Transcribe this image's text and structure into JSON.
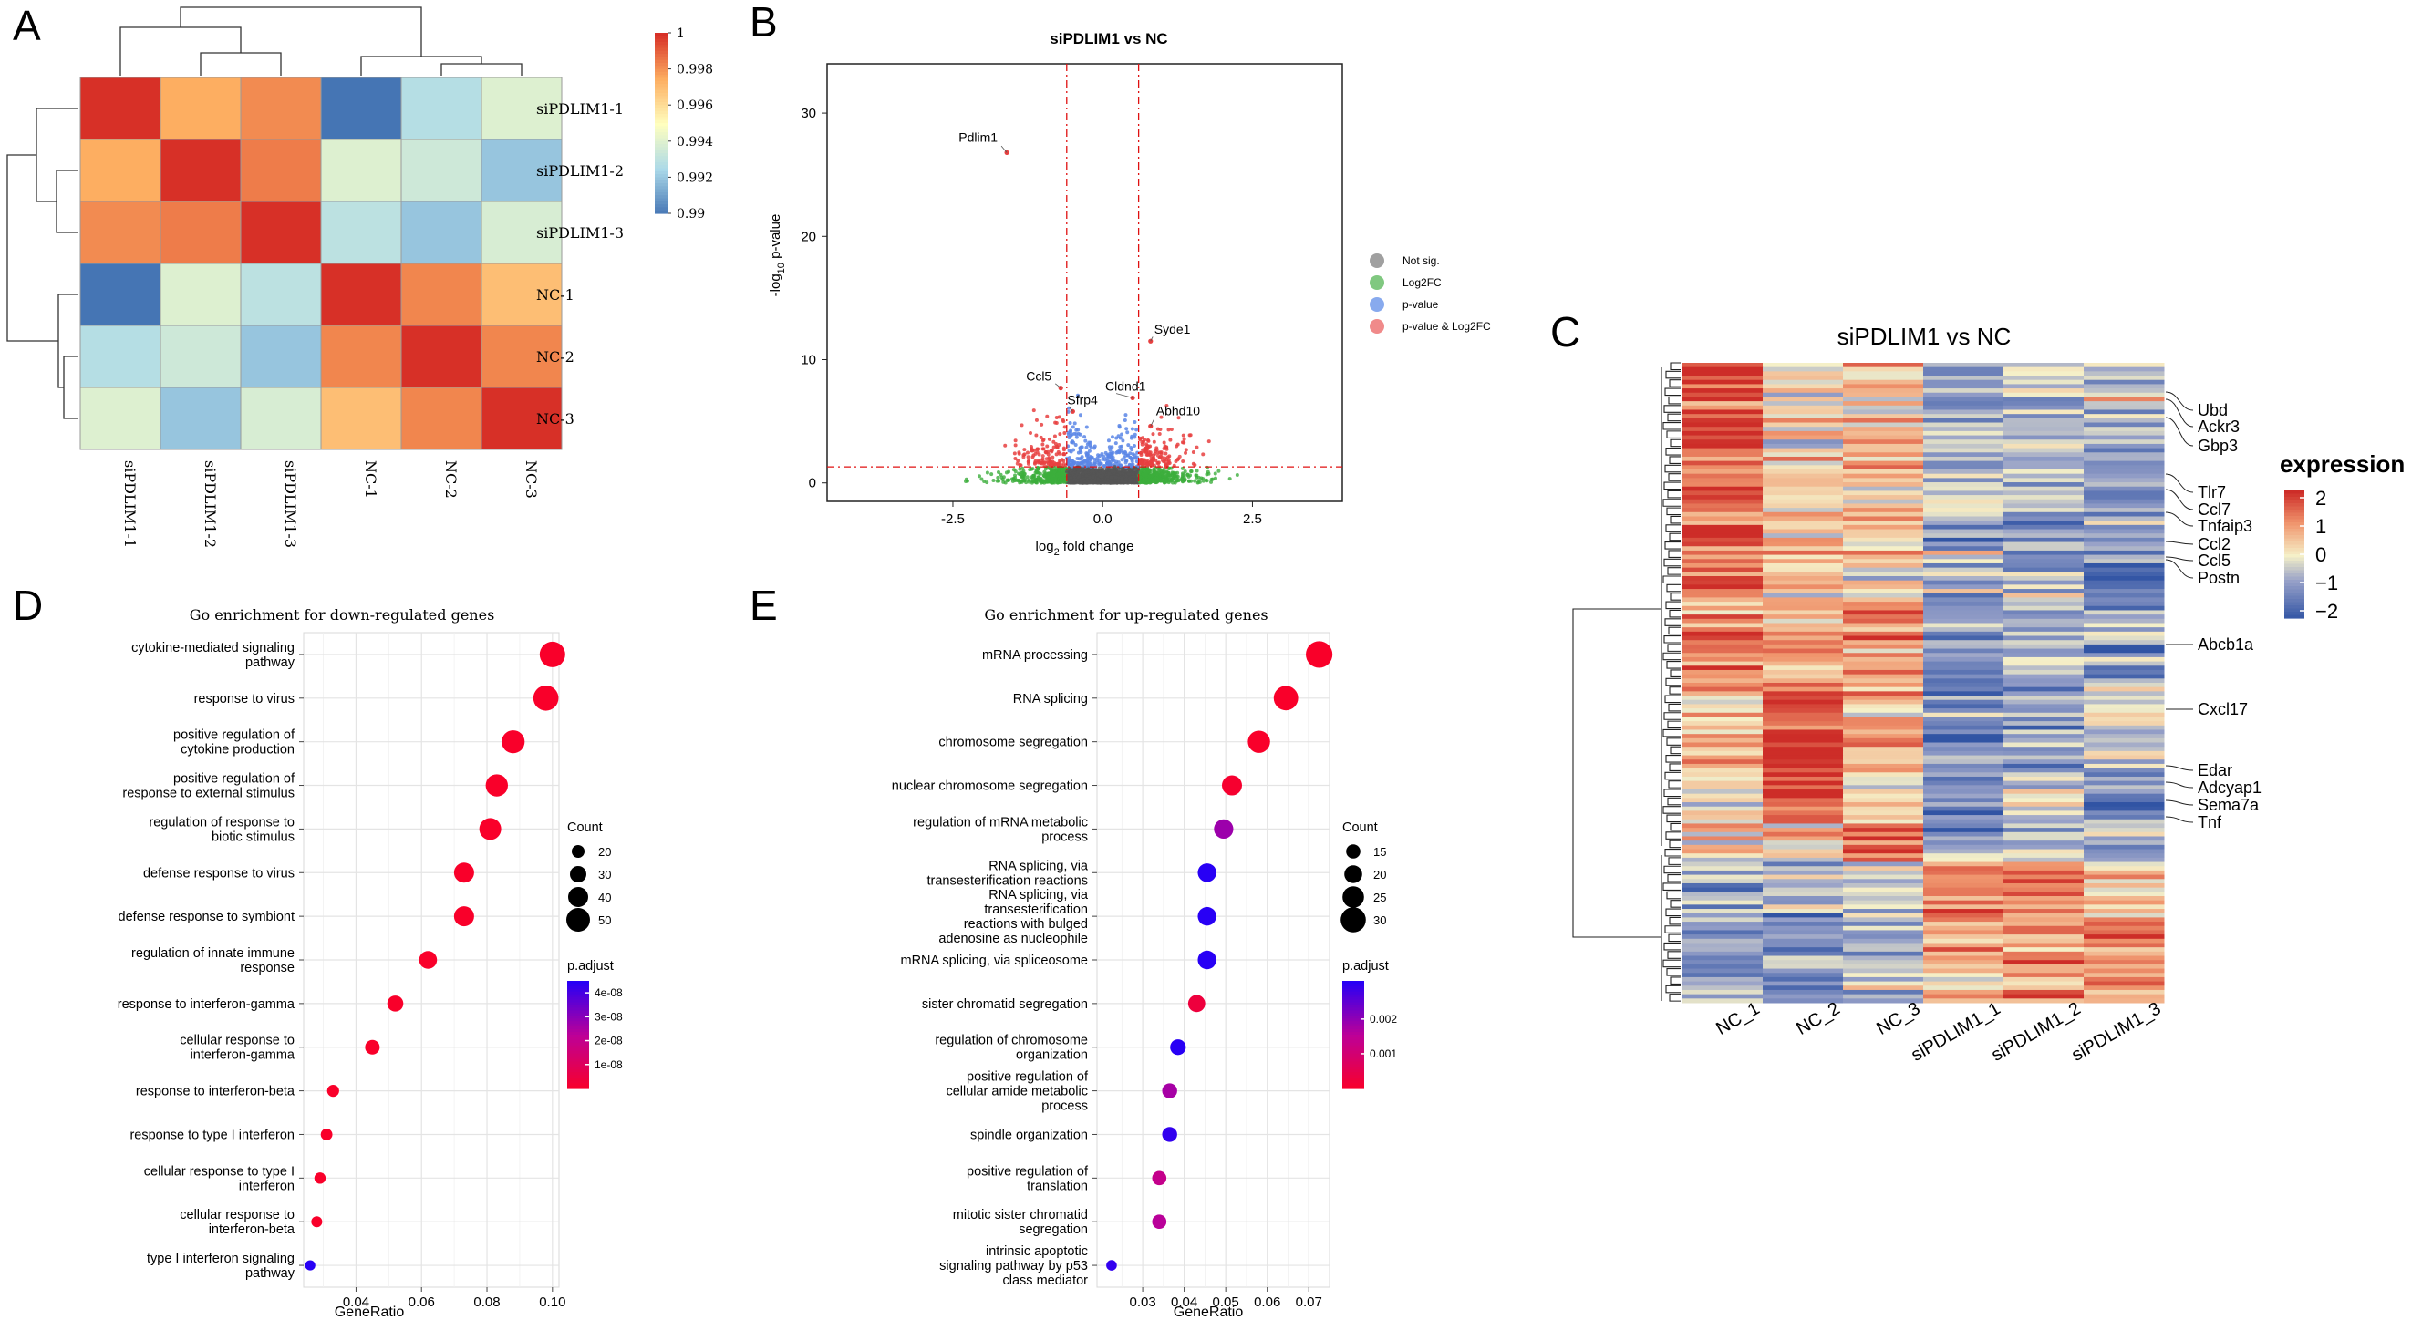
{
  "panel_labels": {
    "a": "A",
    "b": "B",
    "c": "C",
    "d": "D",
    "e": "E"
  },
  "chart_data": [
    {
      "id": "A",
      "type": "heatmap",
      "title": "",
      "rows": [
        "siPDLIM1-1",
        "siPDLIM1-2",
        "siPDLIM1-3",
        "NC-1",
        "NC-2",
        "NC-3"
      ],
      "cols": [
        "siPDLIM1-1",
        "siPDLIM1-2",
        "siPDLIM1-3",
        "NC-1",
        "NC-2",
        "NC-3"
      ],
      "values": [
        [
          1.0,
          0.9975,
          0.9982,
          0.99,
          0.9928,
          0.994
        ],
        [
          0.9975,
          1.0,
          0.9985,
          0.994,
          0.9935,
          0.992
        ],
        [
          0.9982,
          0.9985,
          1.0,
          0.993,
          0.992,
          0.9938
        ],
        [
          0.99,
          0.994,
          0.993,
          1.0,
          0.9983,
          0.997
        ],
        [
          0.9928,
          0.9935,
          0.992,
          0.9983,
          1.0,
          0.9983
        ],
        [
          0.994,
          0.992,
          0.9938,
          0.997,
          0.9983,
          1.0
        ]
      ],
      "color_range": [
        0.99,
        1.0
      ],
      "colorbar_ticks": [
        "1",
        "0.998",
        "0.996",
        "0.994",
        "0.992",
        "0.99"
      ]
    },
    {
      "id": "B",
      "type": "scatter",
      "title": "siPDLIM1 vs NC",
      "xlabel_main": "log",
      "xlabel_sub": "2",
      "xlabel_rest": " fold change",
      "ylabel_main": "-log",
      "ylabel_sub": "10",
      "ylabel_rest": " p-value",
      "xlim": [
        -4.6,
        4.0
      ],
      "ylim": [
        -1.5,
        34
      ],
      "x_ticks": [
        "-2.5",
        "0.0",
        "2.5"
      ],
      "x_tick_values": [
        -2.5,
        0.0,
        2.5
      ],
      "y_ticks": [
        "0",
        "10",
        "20",
        "30"
      ],
      "y_tick_values": [
        0,
        10,
        20,
        30
      ],
      "fc_cutoff": [
        -0.6,
        0.6
      ],
      "p_cutoff": 1.3,
      "legend": [
        {
          "label": "Not sig.",
          "color": "#a0a0a0"
        },
        {
          "label": "Log2FC",
          "color": "#80c880"
        },
        {
          "label": "p-value",
          "color": "#88aaee"
        },
        {
          "label": "p-value & Log2FC",
          "color": "#f08a8a"
        }
      ],
      "labeled_points": [
        {
          "gene": "Pdlim1",
          "x": -1.6,
          "y": 26.8
        },
        {
          "gene": "Syde1",
          "x": 0.8,
          "y": 11.5
        },
        {
          "gene": "Ccl5",
          "x": -0.7,
          "y": 7.7
        },
        {
          "gene": "Sfrp4",
          "x": -0.5,
          "y": 5.8
        },
        {
          "gene": "Cldnd1",
          "x": 0.5,
          "y": 6.9
        },
        {
          "gene": "Abhd10",
          "x": 0.8,
          "y": 4.6
        }
      ]
    },
    {
      "id": "C",
      "type": "heatmap",
      "title": "siPDLIM1 vs NC",
      "columns": [
        "NC_1",
        "NC_2",
        "NC_3",
        "siPDLIM1_1",
        "siPDLIM1_2",
        "siPDLIM1_3"
      ],
      "legend_title": "expression",
      "legend_ticks": [
        "2",
        "1",
        "0",
        "−1",
        "−2"
      ],
      "color_range": [
        -2,
        2
      ],
      "genes": [
        "Ubd",
        "Ackr3",
        "Gbp3",
        "Tlr7",
        "Ccl7",
        "Tnfaip3",
        "Ccl2",
        "Ccl5",
        "Postn",
        "Abcb1a",
        "Cxcl17",
        "Edar",
        "Adcyap1",
        "Sema7a",
        "Tnf"
      ]
    },
    {
      "id": "D",
      "type": "scatter",
      "title": "Go enrichment for down-regulated genes",
      "xlabel": "GeneRatio",
      "ylabel": "",
      "xlim": [
        0.024,
        0.102
      ],
      "x_ticks": [
        "0.04",
        "0.06",
        "0.08",
        "0.10"
      ],
      "x_tick_values": [
        0.04,
        0.06,
        0.08,
        0.1
      ],
      "terms": [
        {
          "label": [
            "cytokine-mediated signaling",
            "pathway"
          ],
          "gene_ratio": 0.1,
          "count": 55,
          "p_adjust": 5e-10
        },
        {
          "label": [
            "response to virus"
          ],
          "gene_ratio": 0.098,
          "count": 54,
          "p_adjust": 5e-10
        },
        {
          "label": [
            "positive regulation of",
            "cytokine production"
          ],
          "gene_ratio": 0.088,
          "count": 48,
          "p_adjust": 5e-10
        },
        {
          "label": [
            "positive regulation of",
            "response to external stimulus"
          ],
          "gene_ratio": 0.083,
          "count": 46,
          "p_adjust": 5e-10
        },
        {
          "label": [
            "regulation of response to",
            "biotic stimulus"
          ],
          "gene_ratio": 0.081,
          "count": 45,
          "p_adjust": 5e-10
        },
        {
          "label": [
            "defense response to virus"
          ],
          "gene_ratio": 0.073,
          "count": 40,
          "p_adjust": 5e-10
        },
        {
          "label": [
            "defense response to symbiont"
          ],
          "gene_ratio": 0.073,
          "count": 40,
          "p_adjust": 5e-10
        },
        {
          "label": [
            "regulation of innate immune",
            "response"
          ],
          "gene_ratio": 0.062,
          "count": 34,
          "p_adjust": 5e-10
        },
        {
          "label": [
            "response to interferon-gamma"
          ],
          "gene_ratio": 0.052,
          "count": 29,
          "p_adjust": 5e-10
        },
        {
          "label": [
            "cellular response to",
            "interferon-gamma"
          ],
          "gene_ratio": 0.045,
          "count": 25,
          "p_adjust": 5e-10
        },
        {
          "label": [
            "response to interferon-beta"
          ],
          "gene_ratio": 0.033,
          "count": 18,
          "p_adjust": 5e-10
        },
        {
          "label": [
            "response to type I interferon"
          ],
          "gene_ratio": 0.031,
          "count": 17,
          "p_adjust": 5e-10
        },
        {
          "label": [
            "cellular response to type I",
            "interferon"
          ],
          "gene_ratio": 0.029,
          "count": 16,
          "p_adjust": 5e-10
        },
        {
          "label": [
            "cellular response to",
            "interferon-beta"
          ],
          "gene_ratio": 0.028,
          "count": 15,
          "p_adjust": 5e-10
        },
        {
          "label": [
            "type I interferon signaling",
            "pathway"
          ],
          "gene_ratio": 0.026,
          "count": 13,
          "p_adjust": 4.5e-08
        }
      ],
      "count_legend": {
        "title": "Count",
        "values": [
          20,
          30,
          40,
          50
        ],
        "range": [
          10,
          60
        ]
      },
      "p_legend": {
        "title": "p.adjust",
        "ticks": [
          "4e-08",
          "3e-08",
          "2e-08",
          "1e-08"
        ],
        "tick_values": [
          4e-08,
          3e-08,
          2e-08,
          1e-08
        ],
        "range": [
          0,
          4.5e-08
        ]
      }
    },
    {
      "id": "E",
      "type": "scatter",
      "title": "Go enrichment for up-regulated genes",
      "xlabel": "GeneRatio",
      "ylabel": "",
      "xlim": [
        0.019,
        0.075
      ],
      "x_ticks": [
        "0.03",
        "0.04",
        "0.05",
        "0.06",
        "0.07"
      ],
      "x_tick_values": [
        0.03,
        0.04,
        0.05,
        0.06,
        0.07
      ],
      "terms": [
        {
          "label": [
            "mRNA processing"
          ],
          "gene_ratio": 0.0725,
          "count": 32,
          "p_adjust": 2e-05
        },
        {
          "label": [
            "RNA splicing"
          ],
          "gene_ratio": 0.0645,
          "count": 29,
          "p_adjust": 3e-05
        },
        {
          "label": [
            "chromosome segregation"
          ],
          "gene_ratio": 0.058,
          "count": 26,
          "p_adjust": 3e-05
        },
        {
          "label": [
            "nuclear chromosome segregation"
          ],
          "gene_ratio": 0.0515,
          "count": 23,
          "p_adjust": 0.0001
        },
        {
          "label": [
            "regulation of mRNA metabolic",
            "process"
          ],
          "gene_ratio": 0.0495,
          "count": 22,
          "p_adjust": 0.0019
        },
        {
          "label": [
            "RNA splicing, via",
            "transesterification reactions"
          ],
          "gene_ratio": 0.0455,
          "count": 21,
          "p_adjust": 0.0031
        },
        {
          "label": [
            "RNA splicing, via",
            "transesterification",
            "reactions with bulged",
            "adenosine as nucleophile"
          ],
          "gene_ratio": 0.0455,
          "count": 21,
          "p_adjust": 0.0031
        },
        {
          "label": [
            "mRNA splicing, via spliceosome"
          ],
          "gene_ratio": 0.0455,
          "count": 21,
          "p_adjust": 0.0031
        },
        {
          "label": [
            "sister chromatid segregation"
          ],
          "gene_ratio": 0.043,
          "count": 19,
          "p_adjust": 0.0003
        },
        {
          "label": [
            "regulation of chromosome",
            "organization"
          ],
          "gene_ratio": 0.0385,
          "count": 17,
          "p_adjust": 0.0031
        },
        {
          "label": [
            "positive regulation of",
            "cellular amide metabolic",
            "process"
          ],
          "gene_ratio": 0.0365,
          "count": 16,
          "p_adjust": 0.0018
        },
        {
          "label": [
            "spindle organization"
          ],
          "gene_ratio": 0.0365,
          "count": 16,
          "p_adjust": 0.003
        },
        {
          "label": [
            "positive regulation of",
            "translation"
          ],
          "gene_ratio": 0.034,
          "count": 15,
          "p_adjust": 0.0014
        },
        {
          "label": [
            "mitotic sister chromatid",
            "segregation"
          ],
          "gene_ratio": 0.034,
          "count": 15,
          "p_adjust": 0.0016
        },
        {
          "label": [
            "intrinsic apoptotic",
            "signaling pathway by p53",
            "class mediator"
          ],
          "gene_ratio": 0.0225,
          "count": 10,
          "p_adjust": 0.003
        }
      ],
      "count_legend": {
        "title": "Count",
        "values": [
          15,
          20,
          25,
          30
        ],
        "range": [
          8,
          33
        ]
      },
      "p_legend": {
        "title": "p.adjust",
        "ticks": [
          "0.002",
          "0.001"
        ],
        "tick_values": [
          0.002,
          0.001
        ],
        "range": [
          0,
          0.0031
        ]
      }
    }
  ]
}
